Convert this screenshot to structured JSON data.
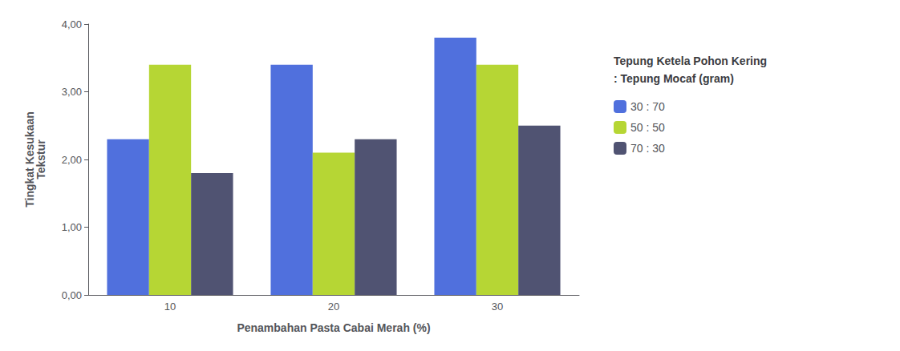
{
  "chart_data": {
    "type": "bar",
    "categories": [
      "10",
      "20",
      "30"
    ],
    "series": [
      {
        "name": "30 : 70",
        "values": [
          2.3,
          3.4,
          3.8
        ]
      },
      {
        "name": "50 : 50",
        "values": [
          3.4,
          2.1,
          3.4
        ]
      },
      {
        "name": "70 : 30",
        "values": [
          1.8,
          2.3,
          2.5
        ]
      }
    ],
    "ylabel": "Tingkat Kesukaan\nTekstur",
    "xlabel": "Penambahan Pasta Cabai Merah (%)",
    "legend_title": "Tepung Ketela Pohon Kering\n: Tepung Mocaf (gram)",
    "ylim": [
      0,
      4.0
    ],
    "yticks": [
      {
        "value": 0.0,
        "label": "0,00"
      },
      {
        "value": 1.0,
        "label": "1,00"
      },
      {
        "value": 2.0,
        "label": "2,00"
      },
      {
        "value": 3.0,
        "label": "3,00"
      },
      {
        "value": 4.0,
        "label": "4,00"
      }
    ],
    "grid": false,
    "legend": "right"
  }
}
